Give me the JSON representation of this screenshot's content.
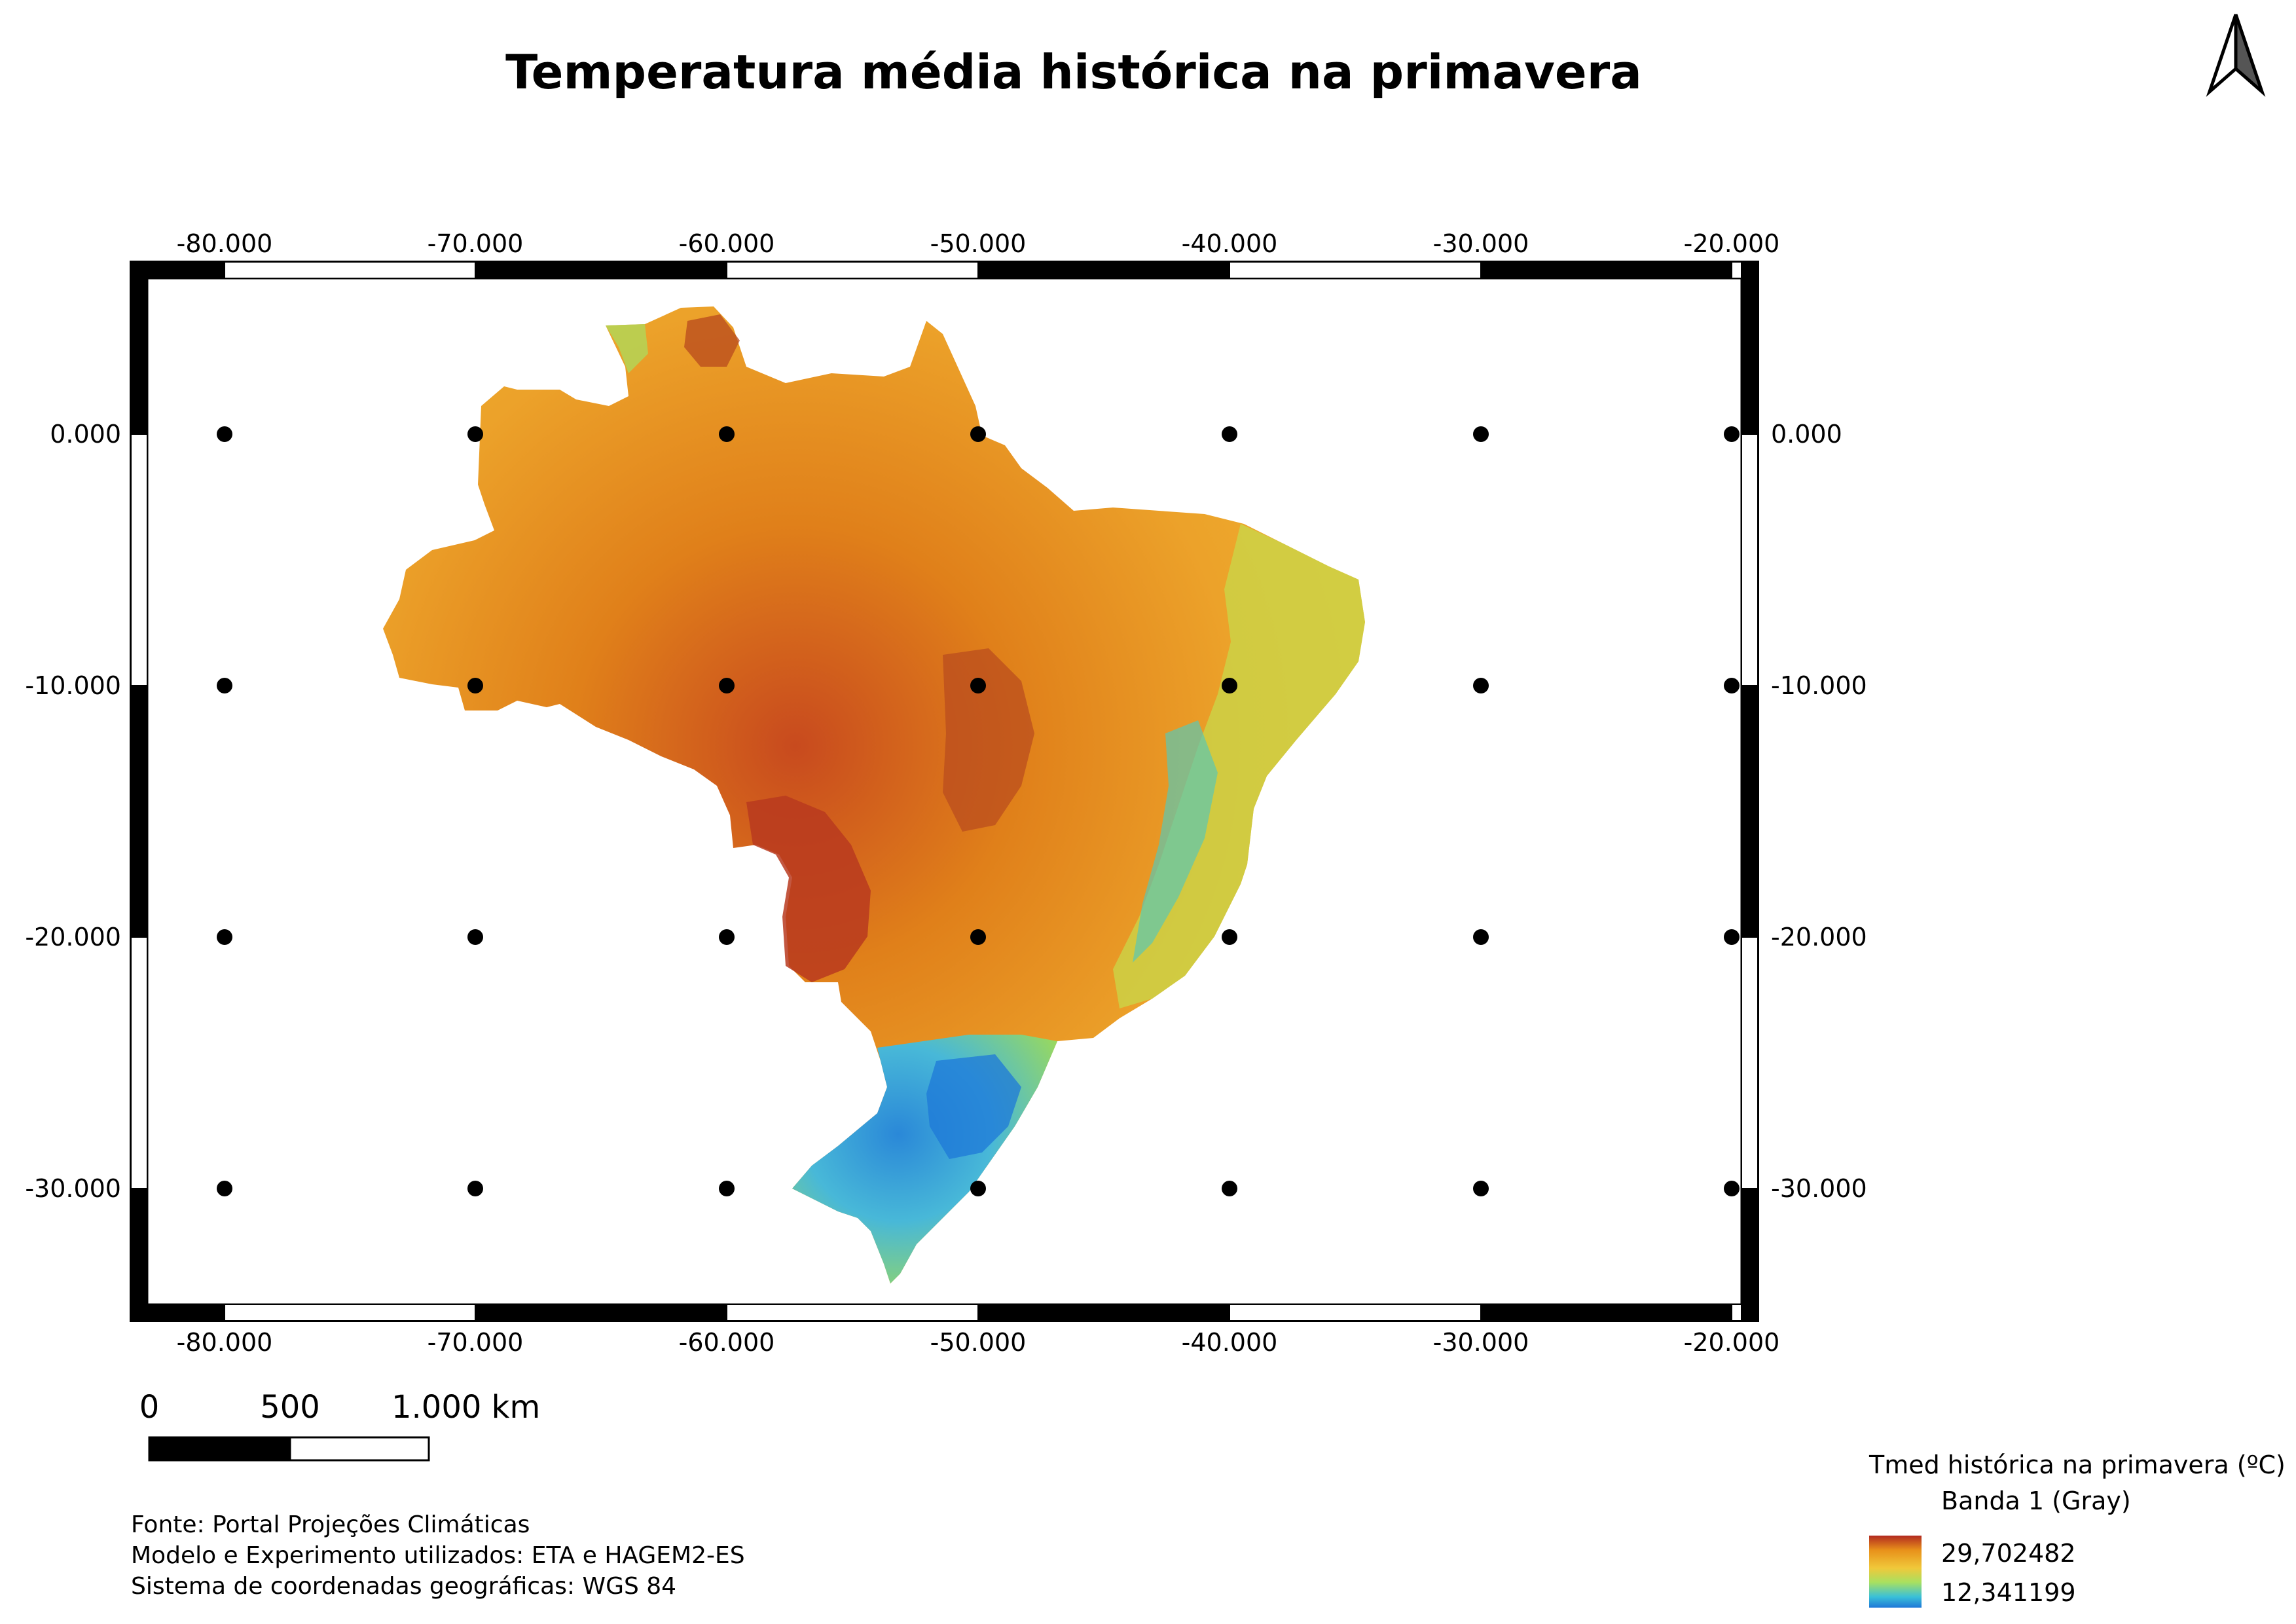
{
  "title": "Temperatura média histórica na primavera",
  "map": {
    "x_ticks": [
      "-80.000",
      "-70.000",
      "-60.000",
      "-50.000",
      "-40.000",
      "-30.000",
      "-20.000"
    ],
    "y_ticks": [
      "0.000",
      "-10.000",
      "-20.000",
      "-30.000"
    ]
  },
  "scale_bar": {
    "labels": [
      "0",
      "500",
      "1.000 km"
    ]
  },
  "notes": [
    "Fonte: Portal Projeções Climáticas",
    "Modelo e Experimento utilizados: ETA e HAGEM2-ES",
    "Sistema de coordenadas geográficas: WGS 84"
  ],
  "legend": {
    "title": "Tmed histórica na primavera (ºC)",
    "band": "Banda 1 (Gray)",
    "max_label": "29,702482",
    "min_label": "12,341199",
    "colors": [
      "#b22a20",
      "#e8901a",
      "#f0c83a",
      "#a8e060",
      "#3ac0d8",
      "#1e78d8"
    ]
  },
  "north_arrow_icon": "north-arrow-icon"
}
